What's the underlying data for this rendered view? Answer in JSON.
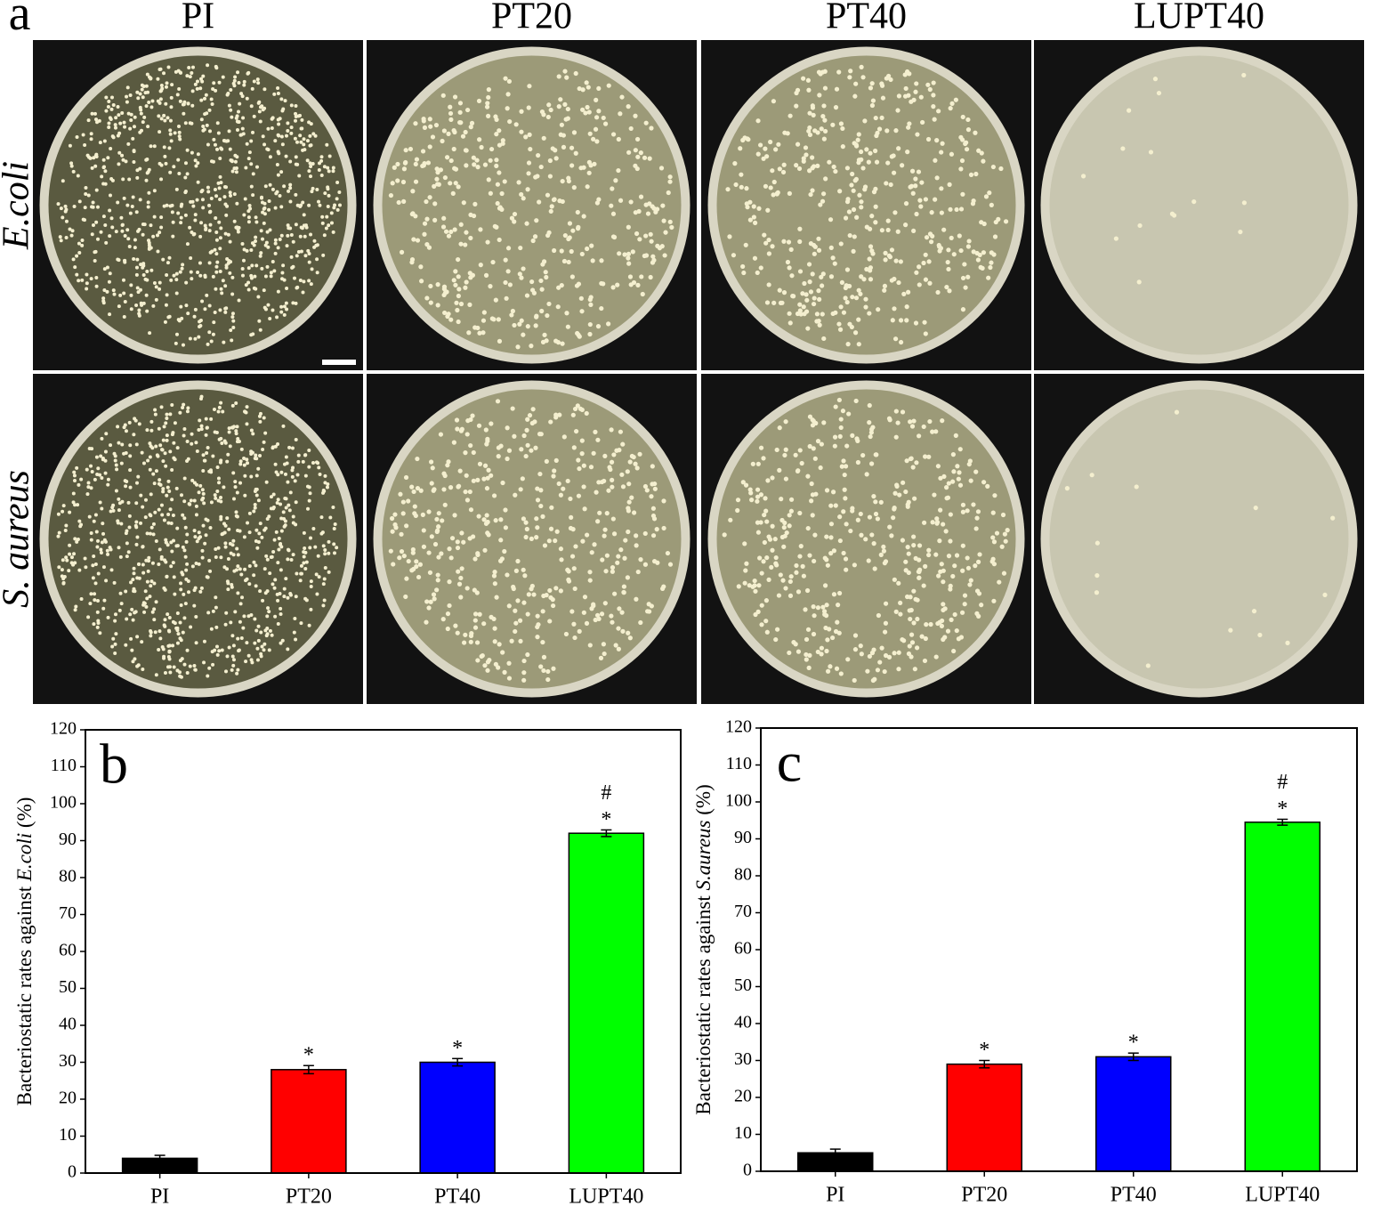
{
  "panel_a": {
    "label": "a",
    "columns": [
      "PI",
      "PT20",
      "PT40",
      "LUPT40"
    ],
    "rows": [
      "E.coli",
      "S. aureus"
    ]
  },
  "chart_data": [
    {
      "type": "bar",
      "panel_label": "b",
      "ylabel": [
        "Bacteriostatic rates against ",
        "E.coli",
        "  (%)"
      ],
      "categories": [
        "PI",
        "PT20",
        "PT40",
        "LUPT40"
      ],
      "values": [
        4,
        28,
        30,
        92
      ],
      "errors": [
        0.8,
        1.1,
        1,
        0.9
      ],
      "colors": [
        "#000000",
        "#ff0000",
        "#0000ff",
        "#00ff00"
      ],
      "annotations": [
        {
          "category": "PT20",
          "text": "*"
        },
        {
          "category": "PT40",
          "text": "*"
        },
        {
          "category": "LUPT40",
          "text": "*"
        },
        {
          "category": "LUPT40",
          "text": "#"
        }
      ],
      "ylim": [
        0,
        120
      ],
      "yticks": [
        0,
        10,
        20,
        30,
        40,
        50,
        60,
        70,
        80,
        90,
        100,
        110,
        120
      ]
    },
    {
      "type": "bar",
      "panel_label": "c",
      "ylabel": [
        "Bacteriostatic rates against ",
        "S.aureus",
        "  (%)"
      ],
      "categories": [
        "PI",
        "PT20",
        "PT40",
        "LUPT40"
      ],
      "values": [
        5,
        29,
        31,
        94.5
      ],
      "errors": [
        1,
        1,
        1,
        0.8
      ],
      "colors": [
        "#000000",
        "#ff0000",
        "#0000ff",
        "#00ff00"
      ],
      "annotations": [
        {
          "category": "PT20",
          "text": "*"
        },
        {
          "category": "PT40",
          "text": "*"
        },
        {
          "category": "LUPT40",
          "text": "*"
        },
        {
          "category": "LUPT40",
          "text": "#"
        }
      ],
      "ylim": [
        0,
        120
      ],
      "yticks": [
        0,
        10,
        20,
        30,
        40,
        50,
        60,
        70,
        80,
        90,
        100,
        110,
        120
      ]
    }
  ]
}
